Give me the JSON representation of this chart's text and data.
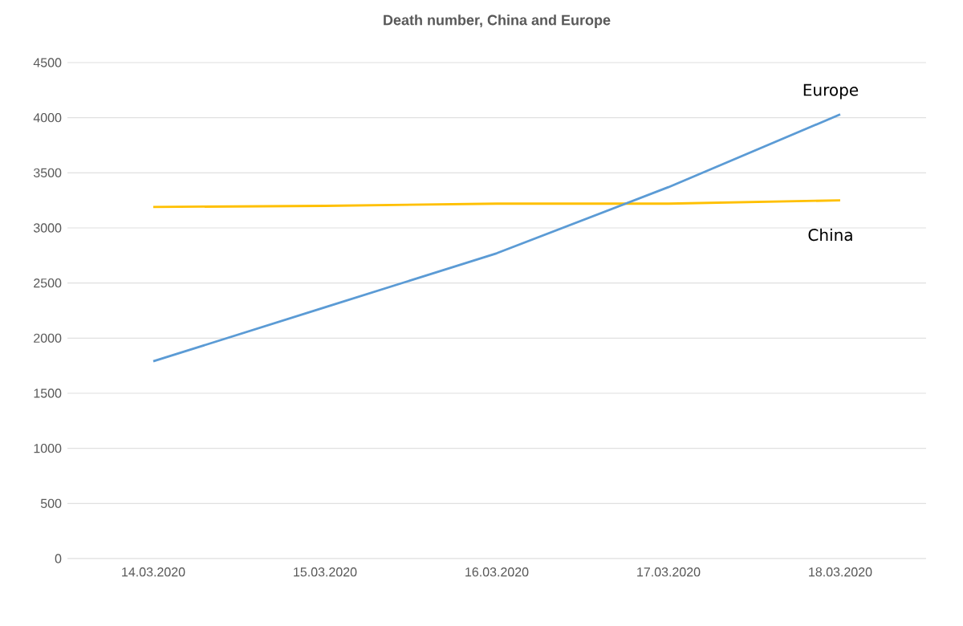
{
  "chart_data": {
    "type": "line",
    "title": "Death number, China and Europe",
    "categories": [
      "14.03.2020",
      "15.03.2020",
      "16.03.2020",
      "17.03.2020",
      "18.03.2020"
    ],
    "series": [
      {
        "name": "China",
        "color": "#ffc000",
        "values": [
          3190,
          3200,
          3220,
          3220,
          3250
        ]
      },
      {
        "name": "Europe",
        "color": "#5b9bd5",
        "values": [
          1790,
          2280,
          2770,
          3370,
          4030
        ]
      }
    ],
    "ylim": [
      0,
      4500
    ],
    "yticks": [
      0,
      500,
      1000,
      1500,
      2000,
      2500,
      3000,
      3500,
      4000,
      4500
    ],
    "grid": "y",
    "legend": false,
    "marker": "none",
    "line_style": "solid"
  }
}
